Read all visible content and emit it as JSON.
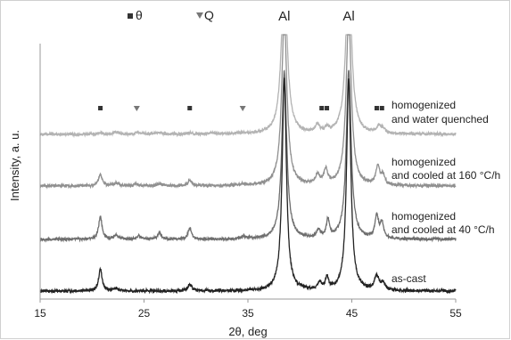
{
  "chart_data": {
    "type": "line",
    "title": "",
    "xlabel": "2θ, deg",
    "ylabel": "Intensity, a. u.",
    "xlim": [
      15,
      55
    ],
    "xticks": [
      "15",
      "25",
      "35",
      "45",
      "55"
    ],
    "grid": false,
    "legend": {
      "position": "top-left",
      "entries": [
        {
          "label": "θ",
          "marker": "square",
          "color": "#333333"
        },
        {
          "label": "Q",
          "marker": "triangle-down",
          "color": "#777777"
        }
      ]
    },
    "peak_labels": [
      {
        "text": "Al",
        "x": 38.5
      },
      {
        "text": "Al",
        "x": 44.7
      }
    ],
    "series": [
      {
        "name": "homogenized and water quenched",
        "label_lines": [
          "homogenized",
          "and water quenched"
        ],
        "color": "#b3b3b3",
        "baseline": 0,
        "peaks": [
          [
            20.8,
            1.5,
            0.25
          ],
          [
            22.3,
            3,
            0.3
          ],
          [
            24.5,
            2,
            0.3
          ],
          [
            26.5,
            2.5,
            0.3
          ],
          [
            29.4,
            1.5,
            0.25
          ],
          [
            31.5,
            1.5,
            0.3
          ],
          [
            34.5,
            1.5,
            0.3
          ],
          [
            38.5,
            210,
            0.32
          ],
          [
            41.7,
            9,
            0.25
          ],
          [
            42.6,
            5,
            0.25
          ],
          [
            44.7,
            210,
            0.32
          ],
          [
            47.6,
            8,
            0.25
          ],
          [
            48.0,
            5,
            0.25
          ]
        ],
        "markers": [
          {
            "x": 20.8,
            "type": "theta"
          },
          {
            "x": 24.3,
            "type": "Q"
          },
          {
            "x": 29.4,
            "type": "theta"
          },
          {
            "x": 34.5,
            "type": "Q"
          },
          {
            "x": 42.1,
            "type": "theta"
          },
          {
            "x": 42.6,
            "type": "theta"
          },
          {
            "x": 47.4,
            "type": "theta"
          },
          {
            "x": 47.9,
            "type": "theta"
          }
        ]
      },
      {
        "name": "homogenized and cooled at 160 °C/h",
        "label_lines": [
          "homogenized",
          "and cooled at 160 °C/h"
        ],
        "color": "#909090",
        "baseline": 0,
        "peaks": [
          [
            20.8,
            14,
            0.22
          ],
          [
            22.3,
            3,
            0.3
          ],
          [
            24.3,
            2,
            0.3
          ],
          [
            26.5,
            3,
            0.3
          ],
          [
            29.4,
            7,
            0.22
          ],
          [
            34.5,
            2,
            0.3
          ],
          [
            38.5,
            210,
            0.3
          ],
          [
            41.7,
            12,
            0.22
          ],
          [
            42.5,
            18,
            0.22
          ],
          [
            44.7,
            210,
            0.3
          ],
          [
            47.5,
            22,
            0.22
          ],
          [
            48.0,
            12,
            0.22
          ]
        ],
        "markers": []
      },
      {
        "name": "homogenized and cooled at 40 °C/h",
        "label_lines": [
          "homogenized",
          "and cooled at 40 °C/h"
        ],
        "color": "#6e6e6e",
        "baseline": 0,
        "peaks": [
          [
            20.8,
            28,
            0.2
          ],
          [
            22.3,
            5,
            0.25
          ],
          [
            24.5,
            4,
            0.25
          ],
          [
            26.5,
            8,
            0.22
          ],
          [
            29.4,
            14,
            0.2
          ],
          [
            34.6,
            3,
            0.25
          ],
          [
            38.5,
            210,
            0.28
          ],
          [
            41.8,
            10,
            0.2
          ],
          [
            42.7,
            22,
            0.18
          ],
          [
            44.7,
            210,
            0.28
          ],
          [
            47.4,
            28,
            0.2
          ],
          [
            47.9,
            18,
            0.2
          ]
        ],
        "markers": []
      },
      {
        "name": "as-cast",
        "label_lines": [
          "as-cast"
        ],
        "color": "#222222",
        "baseline": 0,
        "peaks": [
          [
            20.8,
            25,
            0.2
          ],
          [
            22.3,
            3,
            0.25
          ],
          [
            29.4,
            8,
            0.22
          ],
          [
            38.5,
            250,
            0.25
          ],
          [
            41.9,
            8,
            0.2
          ],
          [
            42.6,
            14,
            0.18
          ],
          [
            44.7,
            250,
            0.25
          ],
          [
            47.4,
            16,
            0.25
          ],
          [
            48.0,
            8,
            0.25
          ]
        ],
        "markers": []
      }
    ]
  }
}
